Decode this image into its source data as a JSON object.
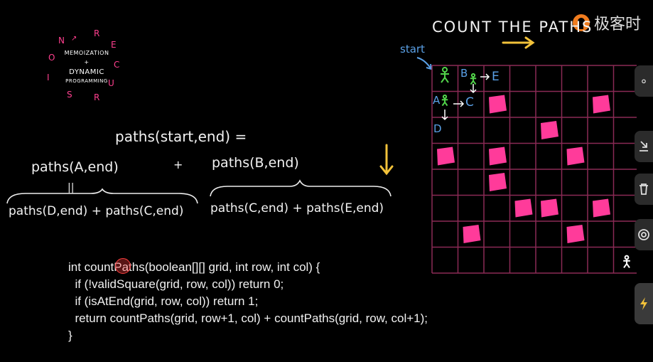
{
  "watermark": {
    "text": "极客时"
  },
  "wheel": {
    "letters": [
      "N",
      "R",
      "E",
      "C",
      "U",
      "R",
      "S",
      "I",
      "O"
    ],
    "line1": "MEMOIZATION",
    "plus": "+",
    "line2": "DYNAMIC",
    "line3": "PROGRAMMING"
  },
  "heading": {
    "text": "COUNT THE PATHS"
  },
  "labels": {
    "start": "start"
  },
  "formula": {
    "top": "paths(start,end) =",
    "left": "paths(A,end)",
    "plus": "+",
    "right": "paths(B,end)",
    "equals": "||",
    "bottom_left": "paths(D,end) + paths(C,end)",
    "bottom_right": "paths(C,end) + paths(E,end)"
  },
  "grid_labels": {
    "A": "A",
    "B": "B",
    "C": "C",
    "D": "D",
    "E": "E"
  },
  "code": [
    "int countPaths(boolean[][] grid, int row, int col) {",
    "  if (!validSquare(grid, row, col)) return 0;",
    "  if (isAtEnd(grid, row, col)) return 1;",
    "  return countPaths(grid, row+1, col) + countPaths(grid, row, col+1);",
    "}"
  ],
  "colors": {
    "grid": "#8a2a55",
    "block": "#ff3b9a",
    "arrow_yellow": "#f2c23a",
    "label_blue": "#5aa0e6",
    "figure_green": "#52d44a"
  },
  "side_icons": [
    "circle-icon",
    "download-icon",
    "delete-icon",
    "target-icon",
    "flash-icon"
  ]
}
